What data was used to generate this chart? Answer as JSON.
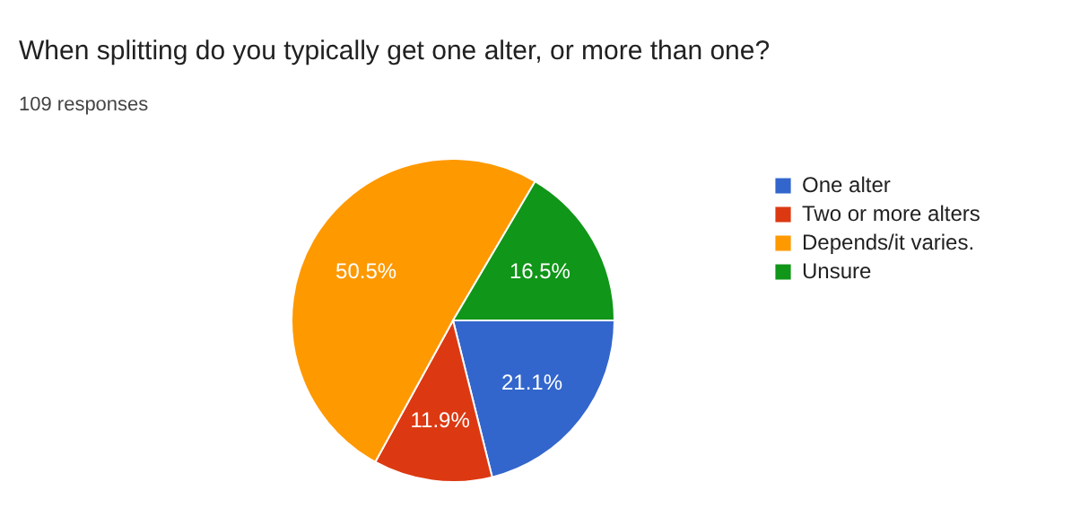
{
  "chart_data": {
    "type": "pie",
    "title": "When splitting do you typically get one alter, or more than one?",
    "subtitle": "109 responses",
    "categories": [
      "One alter",
      "Two or more alters",
      "Depends/it varies.",
      "Unsure"
    ],
    "values": [
      21.1,
      11.9,
      50.5,
      16.5
    ],
    "value_labels": [
      "21.1%",
      "11.9%",
      "50.5%",
      "16.5%"
    ],
    "colors": [
      "#3366cc",
      "#dc3912",
      "#ff9900",
      "#109618"
    ],
    "legend": "right"
  }
}
